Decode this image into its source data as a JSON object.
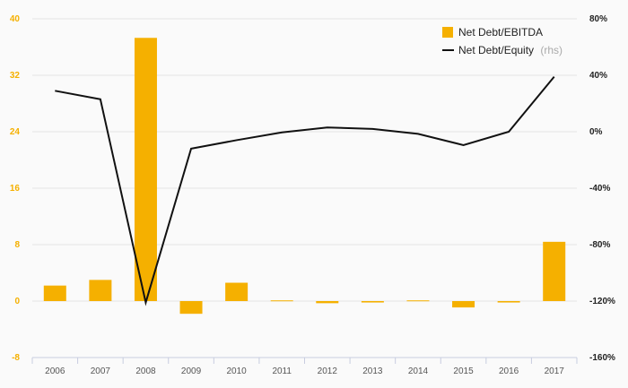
{
  "chart_data": {
    "type": "bar+line",
    "categories": [
      "2006",
      "2007",
      "2008",
      "2009",
      "2010",
      "2011",
      "2012",
      "2013",
      "2014",
      "2015",
      "2016",
      "2017"
    ],
    "series": [
      {
        "name": "Net Debt/EBITDA",
        "type": "bar",
        "axis": "left",
        "color": "#f5b000",
        "values": [
          2.2,
          3.0,
          37.3,
          -1.8,
          2.6,
          0.1,
          -0.3,
          -0.2,
          0.1,
          -0.9,
          -0.2,
          8.4
        ]
      },
      {
        "name": "Net Debt/Equity",
        "name_suffix": "(rhs)",
        "type": "line",
        "axis": "right",
        "color": "#111111",
        "values": [
          29,
          23,
          -121,
          -12,
          -6,
          -0.5,
          3,
          2,
          -1.5,
          -9.5,
          0,
          39
        ]
      }
    ],
    "y_left": {
      "min": -8,
      "max": 40,
      "ticks": [
        40,
        32,
        24,
        16,
        8,
        0,
        -8
      ],
      "tick_labels": [
        "40",
        "32",
        "24",
        "16",
        "8",
        "0",
        "-8"
      ]
    },
    "y_right": {
      "min": -160,
      "max": 80,
      "ticks": [
        80,
        40,
        0,
        -40,
        -80,
        -120,
        -160
      ],
      "tick_labels": [
        "80%",
        "40%",
        "0%",
        "-40%",
        "-80%",
        "-120%",
        "-160%"
      ]
    },
    "grid": true,
    "legend_position": "top-right"
  }
}
